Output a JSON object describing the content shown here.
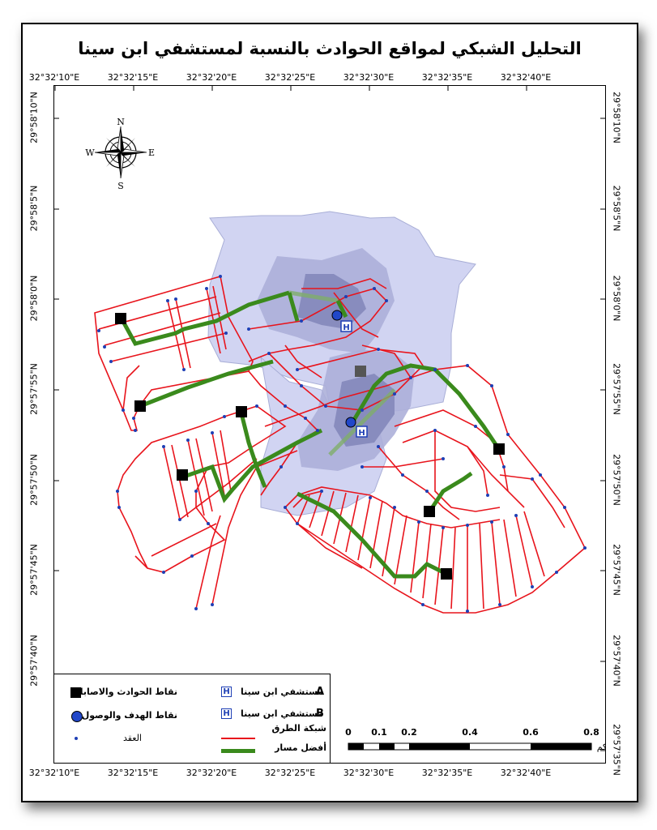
{
  "title": "التحليل الشبكي لمواقع الحوادث بالنسبة لمستشفي ابن سينا",
  "coords": {
    "top": [
      "32°32'10\"E",
      "32°32'15\"E",
      "32°32'20\"E",
      "32°32'25\"E",
      "32°32'30\"E",
      "32°32'35\"E",
      "32°32'40\"E"
    ],
    "bottom": [
      "32°32'10\"E",
      "32°32'15\"E",
      "32°32'20\"E",
      "32°32'25\"E",
      "32°32'30\"E",
      "32°32'35\"E",
      "32°32'40\"E"
    ],
    "left": [
      "29°58'10\"N",
      "29°58'5\"N",
      "29°58'0\"N",
      "29°57'55\"N",
      "29°57'50\"N",
      "29°57'45\"N",
      "29°57'40\"N"
    ],
    "right": [
      "29°58'10\"N",
      "29°58'5\"N",
      "29°58'0\"N",
      "29°57'55\"N",
      "29°57'50\"N",
      "29°57'45\"N",
      "29°57'40\"N",
      "29°57'35\"N"
    ]
  },
  "compass": {
    "n": "N",
    "s": "S",
    "e": "E",
    "w": "W"
  },
  "legend": {
    "accidents": "نقاط الحوادث والاصابات",
    "target": "نقاط الهدف والوصول",
    "nodes": "العقد",
    "hospital_a_letter": "A",
    "hospital_a": "مستشفي ابن سينا",
    "hospital_b_letter": "B",
    "hospital_b": "مستشفي ابن سينا",
    "roads": "شبكة الطرق",
    "best_route": "أفضل مسار",
    "hospital_icon_letter": "H"
  },
  "scale": {
    "ticks": [
      "0",
      "0.1",
      "0.2",
      "0.4",
      "0.6",
      "0.8"
    ],
    "unit": "كم"
  },
  "colors": {
    "road": "#e8141c",
    "route": "#3a8a1c",
    "node": "#1e3fb5",
    "service": "#b9bde6",
    "accident": "#000000",
    "target": "#2147c9"
  }
}
